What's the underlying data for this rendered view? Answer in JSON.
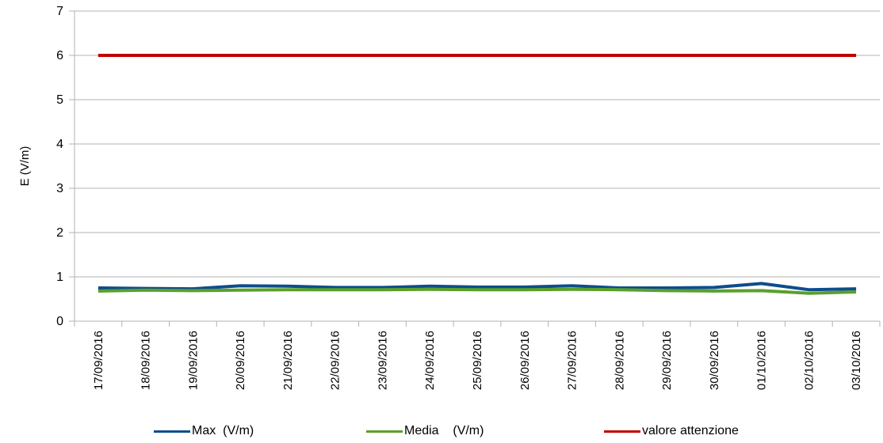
{
  "chart_data": {
    "type": "line",
    "title": "",
    "xlabel": "",
    "ylabel": "E (V/m)",
    "ylim": [
      0,
      7
    ],
    "yticks": [
      0,
      1,
      2,
      3,
      4,
      5,
      6,
      7
    ],
    "grid": true,
    "legend_position": "bottom",
    "categories": [
      "17/09/2016",
      "18/09/2016",
      "19/09/2016",
      "20/09/2016",
      "21/09/2016",
      "22/09/2016",
      "23/09/2016",
      "24/09/2016",
      "25/09/2016",
      "26/09/2016",
      "27/09/2016",
      "28/09/2016",
      "29/09/2016",
      "30/09/2016",
      "01/10/2016",
      "02/10/2016",
      "03/10/2016"
    ],
    "series": [
      {
        "name": "Max  (V/m)",
        "color": "#0e4d8c",
        "values": [
          0.75,
          0.74,
          0.73,
          0.8,
          0.79,
          0.76,
          0.76,
          0.79,
          0.77,
          0.77,
          0.8,
          0.75,
          0.75,
          0.76,
          0.85,
          0.71,
          0.73
        ]
      },
      {
        "name": "Media    (V/m)",
        "color": "#5aa02c",
        "values": [
          0.68,
          0.7,
          0.69,
          0.7,
          0.71,
          0.71,
          0.71,
          0.72,
          0.71,
          0.71,
          0.72,
          0.71,
          0.69,
          0.68,
          0.69,
          0.63,
          0.66
        ]
      },
      {
        "name": "valore attenzione",
        "color": "#c00000",
        "values": [
          6,
          6,
          6,
          6,
          6,
          6,
          6,
          6,
          6,
          6,
          6,
          6,
          6,
          6,
          6,
          6,
          6
        ]
      }
    ]
  }
}
